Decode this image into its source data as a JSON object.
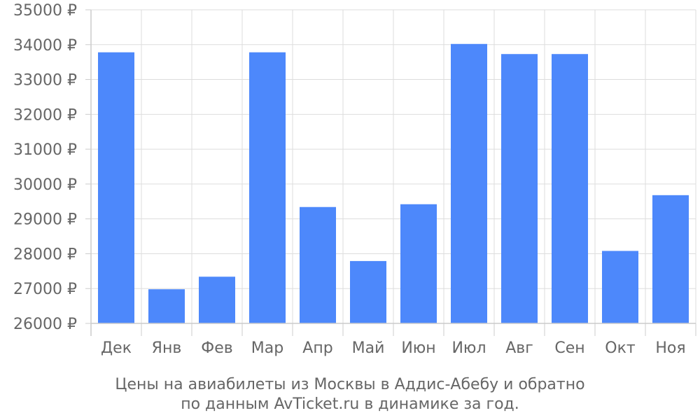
{
  "chart_data": {
    "type": "bar",
    "categories": [
      "Дек",
      "Янв",
      "Фев",
      "Мар",
      "Апр",
      "Май",
      "Июн",
      "Июл",
      "Авг",
      "Сен",
      "Окт",
      "Ноя"
    ],
    "values": [
      33780,
      26980,
      27340,
      33780,
      29340,
      27790,
      29420,
      34020,
      33730,
      33730,
      28080,
      29680
    ],
    "ylim": [
      26000,
      35000
    ],
    "y_ticks": [
      26000,
      27000,
      28000,
      29000,
      30000,
      31000,
      32000,
      33000,
      34000,
      35000
    ],
    "y_tick_labels": [
      "26000 ₽",
      "27000 ₽",
      "28000 ₽",
      "29000 ₽",
      "30000 ₽",
      "31000 ₽",
      "32000 ₽",
      "33000 ₽",
      "34000 ₽",
      "35000 ₽"
    ],
    "grid": true,
    "bar_color": "#4d88fb",
    "caption_lines": [
      "Цены на авиабилеты из Москвы в Аддис-Абебу и обратно",
      "по данным AvTicket.ru в динамике за год."
    ]
  }
}
